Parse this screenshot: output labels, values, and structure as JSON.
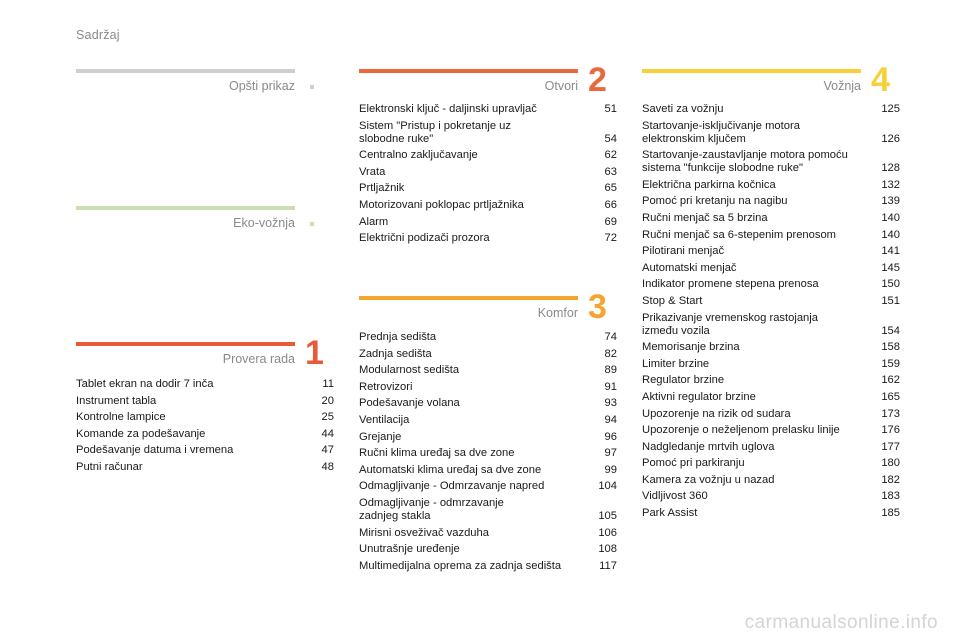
{
  "header": {
    "title": "Sadržaj"
  },
  "colors": {
    "overview": "#cfcfcf",
    "eco": "#c9dfb2",
    "check": "#e85a3a",
    "openings": "#e9693d",
    "comfort": "#f3a52d",
    "driving": "#f7cf37"
  },
  "sections": {
    "overview": {
      "title": "Opšti prikaz",
      "number": "",
      "entries": []
    },
    "eco": {
      "title": "Eko-vožnja",
      "number": "",
      "entries": []
    },
    "check": {
      "title": "Provera rada",
      "number": "1",
      "entries": [
        {
          "text": "Tablet ekran na dodir 7 inča",
          "page": "11"
        },
        {
          "text": "Instrument tabla",
          "page": "20"
        },
        {
          "text": "Kontrolne lampice",
          "page": "25"
        },
        {
          "text": "Komande za podešavanje",
          "page": "44"
        },
        {
          "text": "Podešavanje datuma i vremena",
          "page": "47"
        },
        {
          "text": "Putni računar",
          "page": "48"
        }
      ]
    },
    "openings": {
      "title": "Otvori",
      "number": "2",
      "entries": [
        {
          "text": "Elektronski ključ - daljinski upravljač",
          "page": "51"
        },
        {
          "text": "Sistem \"Pristup i pokretanje uz\nslobodne ruke\"",
          "page": "54"
        },
        {
          "text": "Centralno zaključavanje",
          "page": "62"
        },
        {
          "text": "Vrata",
          "page": "63"
        },
        {
          "text": "Prtljažnik",
          "page": "65"
        },
        {
          "text": "Motorizovani poklopac prtljažnika",
          "page": "66"
        },
        {
          "text": "Alarm",
          "page": "69"
        },
        {
          "text": "Električni podizači prozora",
          "page": "72"
        }
      ]
    },
    "comfort": {
      "title": "Komfor",
      "number": "3",
      "entries": [
        {
          "text": "Prednja sedišta",
          "page": "74"
        },
        {
          "text": "Zadnja sedišta",
          "page": "82"
        },
        {
          "text": "Modularnost sedišta",
          "page": "89"
        },
        {
          "text": "Retrovizori",
          "page": "91"
        },
        {
          "text": "Podešavanje volana",
          "page": "93"
        },
        {
          "text": "Ventilacija",
          "page": "94"
        },
        {
          "text": "Grejanje",
          "page": "96"
        },
        {
          "text": "Ručni klima uređaj sa dve zone",
          "page": "97"
        },
        {
          "text": "Automatski klima uređaj sa dve zone",
          "page": "99"
        },
        {
          "text": "Odmagljivanje - Odmrzavanje napred",
          "page": "104"
        },
        {
          "text": "Odmagljivanje - odmrzavanje\nzadnjeg stakla",
          "page": "105"
        },
        {
          "text": "Mirisni osveživač vazduha",
          "page": "106"
        },
        {
          "text": "Unutrašnje uređenje",
          "page": "108"
        },
        {
          "text": "Multimedijalna oprema za zadnja sedišta",
          "page": "117"
        }
      ]
    },
    "driving": {
      "title": "Vožnja",
      "number": "4",
      "entries": [
        {
          "text": "Saveti za vožnju",
          "page": "125"
        },
        {
          "text": "Startovanje-isključivanje motora\nelektronskim ključem",
          "page": "126"
        },
        {
          "text": "Startovanje-zaustavljanje motora pomoću\nsistema \"funkcije slobodne ruke\"",
          "page": "128"
        },
        {
          "text": "Električna parkirna kočnica",
          "page": "132"
        },
        {
          "text": "Pomoć pri kretanju na nagibu",
          "page": "139"
        },
        {
          "text": "Ručni menjač sa 5 brzina",
          "page": "140"
        },
        {
          "text": "Ručni menjač sa 6-stepenim prenosom",
          "page": "140"
        },
        {
          "text": "Pilotirani menjač",
          "page": "141"
        },
        {
          "text": "Automatski menjač",
          "page": "145"
        },
        {
          "text": "Indikator promene stepena prenosa",
          "page": "150"
        },
        {
          "text": "Stop & Start",
          "page": "151"
        },
        {
          "text": "Prikazivanje vremenskog rastojanja\nizmeđu vozila",
          "page": "154"
        },
        {
          "text": "Memorisanje brzina",
          "page": "158"
        },
        {
          "text": "Limiter brzine",
          "page": "159"
        },
        {
          "text": "Regulator brzine",
          "page": "162"
        },
        {
          "text": "Aktivni regulator brzine",
          "page": "165"
        },
        {
          "text": "Upozorenje na rizik od sudara",
          "page": "173"
        },
        {
          "text": "Upozorenje o neželjenom prelasku linije",
          "page": "176"
        },
        {
          "text": "Nadgledanje mrtvih uglova",
          "page": "177"
        },
        {
          "text": "Pomoć pri parkiranju",
          "page": "180"
        },
        {
          "text": "Kamera za vožnju u nazad",
          "page": "182"
        },
        {
          "text": "Vidljivost 360",
          "page": "183"
        },
        {
          "text": "Park Assist",
          "page": "185"
        }
      ]
    }
  },
  "watermark": "carmanualsonline.info"
}
